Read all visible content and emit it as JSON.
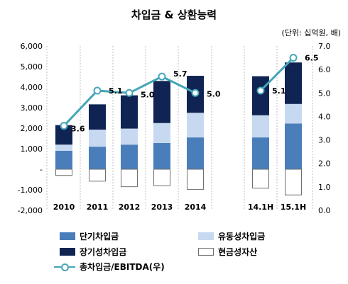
{
  "title": "차입금 & 상환능력",
  "unit": "(단위: 십억원, 배)",
  "colors": {
    "short_term": "#4a7ebb",
    "current_long": "#c6d9f1",
    "long_term": "#0f2452",
    "cash_border": "#6f6f6f",
    "ratio_line": "#45a6b8"
  },
  "legend": {
    "short_term": "단기차입금",
    "current_long": "유동성차입금",
    "long_term": "장기성차입금",
    "cash": "현금성자산",
    "ratio": "총차입금/EBITDA(우)"
  },
  "chart_data": {
    "type": "bar",
    "stacked": true,
    "title": "차입금 & 상환능력",
    "categories": [
      "2010",
      "2011",
      "2012",
      "2013",
      "2014",
      "14.1H",
      "15.1H"
    ],
    "series": [
      {
        "name": "단기차입금",
        "values": [
          900,
          1100,
          1200,
          1280,
          1550,
          1550,
          2230
        ]
      },
      {
        "name": "유동성차입금",
        "values": [
          300,
          830,
          780,
          970,
          1200,
          1080,
          950
        ]
      },
      {
        "name": "장기성차입금",
        "values": [
          950,
          1230,
          1620,
          2050,
          1800,
          1900,
          2020
        ]
      },
      {
        "name": "현금성자산",
        "values": [
          -300,
          -580,
          -850,
          -800,
          -980,
          -920,
          -1250
        ]
      }
    ],
    "line": {
      "name": "총차입금/EBITDA(우)",
      "values": [
        3.6,
        5.1,
        5.0,
        5.7,
        5.0,
        5.1,
        6.5
      ]
    },
    "y_left": {
      "min": -2000,
      "max": 6000,
      "ticks": [
        "-2,000",
        "-1,000",
        "-",
        "1,000",
        "2,000",
        "3,000",
        "4,000",
        "5,000",
        "6,000"
      ]
    },
    "y_right": {
      "min": 0,
      "max": 7,
      "ticks": [
        "0.0",
        "1.0",
        "2.0",
        "3.0",
        "4.0",
        "5.0",
        "6.0",
        "7.0"
      ]
    },
    "grid": "dashed-vertical"
  }
}
